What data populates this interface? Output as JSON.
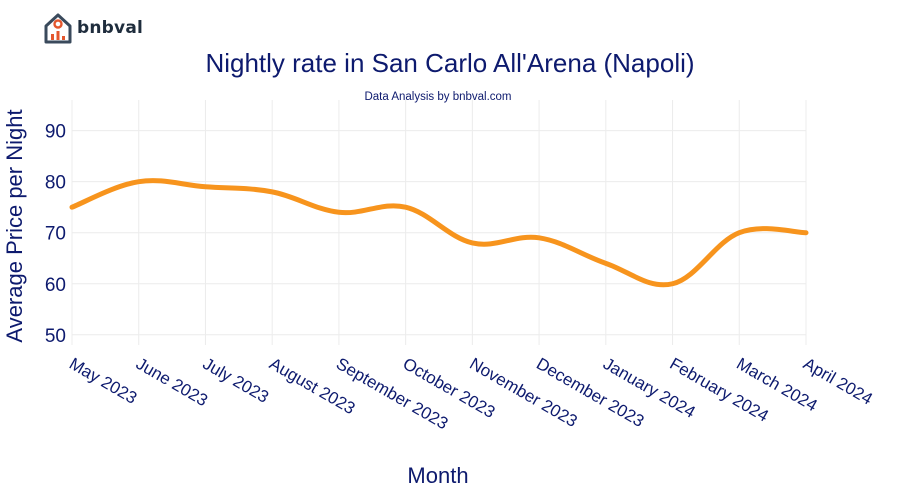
{
  "brand": {
    "name": "bnbval",
    "logo_icon": "house-chart-icon",
    "accent": "#e4572e"
  },
  "chart_data": {
    "type": "line",
    "title": "Nightly rate in San Carlo All'Arena (Napoli)",
    "subtitle": "Data Analysis by bnbval.com",
    "xlabel": "Month",
    "ylabel": "Average Price per Night",
    "categories": [
      "May 2023",
      "June 2023",
      "July 2023",
      "August 2023",
      "September 2023",
      "October 2023",
      "November 2023",
      "December 2023",
      "January 2024",
      "February 2024",
      "March 2024",
      "April 2024"
    ],
    "series": [
      {
        "values": [
          75,
          80,
          79,
          78,
          74,
          75,
          68,
          69,
          64,
          60,
          70,
          70
        ],
        "color": "#f7941d"
      }
    ],
    "yticks": [
      50,
      60,
      70,
      80,
      90
    ],
    "ylim": [
      48,
      96
    ],
    "grid": true,
    "colors": {
      "text": "#0d1a6e",
      "grid": "#ececec"
    }
  }
}
